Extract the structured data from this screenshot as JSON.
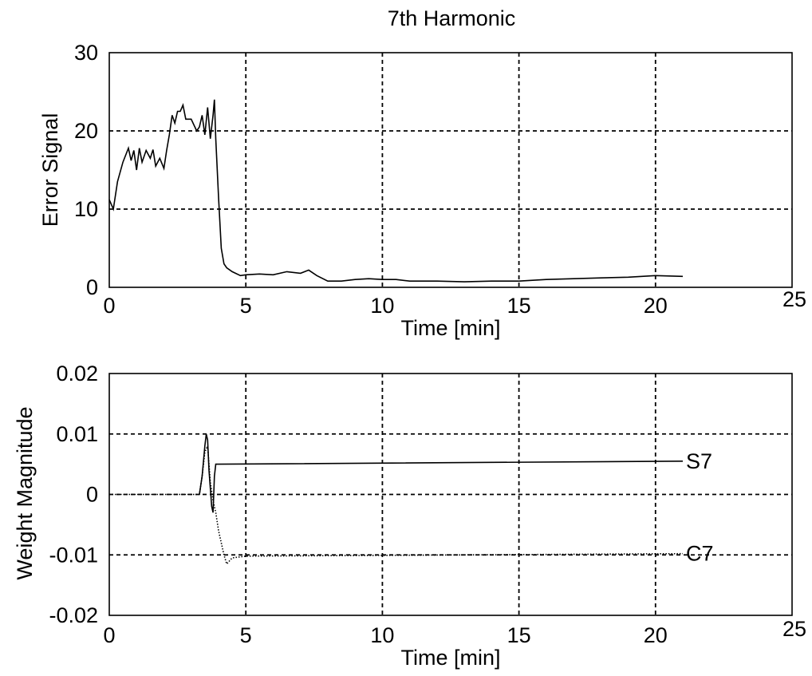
{
  "chart_data": [
    {
      "type": "line",
      "title": "7th Harmonic",
      "xlabel": "Time [min]",
      "ylabel": "Error Signal",
      "xlim": [
        0,
        25
      ],
      "ylim": [
        0,
        30
      ],
      "xticks": [
        "0",
        "5",
        "10",
        "15",
        "20",
        "25"
      ],
      "yticks": [
        "0",
        "10",
        "20",
        "30"
      ],
      "grid": true,
      "series": [
        {
          "style": "solid",
          "x": [
            0,
            0.15,
            0.3,
            0.5,
            0.7,
            0.8,
            0.9,
            1.0,
            1.1,
            1.2,
            1.35,
            1.5,
            1.6,
            1.7,
            1.85,
            2.0,
            2.1,
            2.2,
            2.3,
            2.4,
            2.5,
            2.6,
            2.7,
            2.8,
            3.0,
            3.2,
            3.3,
            3.4,
            3.5,
            3.6,
            3.7,
            3.8,
            3.85,
            3.9,
            4.0,
            4.1,
            4.2,
            4.3,
            4.5,
            4.8,
            5.0,
            5.5,
            6.0,
            6.5,
            7.0,
            7.3,
            7.6,
            8.0,
            8.5,
            9.0,
            9.5,
            10.0,
            10.5,
            11.0,
            12.0,
            13.0,
            14.0,
            15.0,
            16.0,
            17.0,
            18.0,
            19.0,
            20.0,
            21.0
          ],
          "y": [
            11.2,
            10.0,
            13.5,
            16.0,
            17.8,
            16.2,
            17.5,
            15.0,
            17.8,
            16.0,
            17.5,
            16.5,
            17.6,
            15.5,
            16.5,
            15.2,
            17.5,
            19.5,
            22.0,
            21.0,
            22.5,
            22.5,
            23.3,
            21.5,
            21.5,
            20.0,
            20.5,
            22.0,
            19.5,
            23.0,
            19.0,
            22.0,
            24.0,
            19.0,
            11.5,
            5.0,
            3.0,
            2.5,
            2.0,
            1.5,
            1.6,
            1.7,
            1.6,
            2.0,
            1.8,
            2.2,
            1.5,
            0.8,
            0.8,
            1.0,
            1.1,
            1.0,
            1.0,
            0.8,
            0.8,
            0.7,
            0.8,
            0.8,
            1.0,
            1.1,
            1.2,
            1.3,
            1.5,
            1.4
          ]
        }
      ]
    },
    {
      "type": "line",
      "title": "",
      "xlabel": "Time [min]",
      "ylabel": "Weight Magnitude",
      "xlim": [
        0,
        25
      ],
      "ylim": [
        -0.02,
        0.02
      ],
      "xticks": [
        "0",
        "5",
        "10",
        "15",
        "20",
        "25"
      ],
      "yticks": [
        "-0.02",
        "-0.01",
        "0",
        "0.01",
        "0.02"
      ],
      "grid": true,
      "series": [
        {
          "name": "S7",
          "style": "solid",
          "x": [
            3.3,
            3.4,
            3.5,
            3.55,
            3.6,
            3.65,
            3.7,
            3.75,
            3.8,
            3.85,
            3.9,
            4.0,
            21.0
          ],
          "y": [
            0,
            0.003,
            0.008,
            0.01,
            0.009,
            0.004,
            0.001,
            -0.002,
            -0.003,
            0.003,
            0.005,
            0.005,
            0.0055
          ]
        },
        {
          "name": "C7",
          "style": "dotted",
          "x": [
            0,
            3.3,
            3.4,
            3.5,
            3.6,
            3.7,
            3.8,
            3.9,
            4.0,
            4.1,
            4.2,
            4.3,
            4.5,
            5.0,
            21.0
          ],
          "y": [
            0,
            0,
            0.003,
            0.007,
            0.008,
            0.002,
            -0.001,
            -0.003,
            -0.006,
            -0.008,
            -0.01,
            -0.0115,
            -0.0105,
            -0.0102,
            -0.0098
          ]
        }
      ]
    }
  ]
}
